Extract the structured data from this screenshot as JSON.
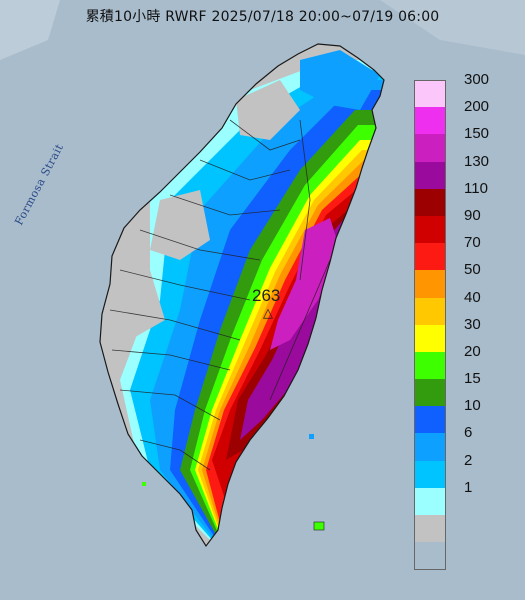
{
  "title": "累積10小時 RWRF 2025/07/18 20:00~07/19 06:00",
  "strait_label": "Formosa Strait",
  "peak_value": "263",
  "peak_marker": "△",
  "legend": [
    {
      "label": "300",
      "color": "#fbc7fb"
    },
    {
      "label": "200",
      "color": "#ee2ff0"
    },
    {
      "label": "150",
      "color": "#cc1fbf"
    },
    {
      "label": "130",
      "color": "#9a0a9c"
    },
    {
      "label": "110",
      "color": "#9c0000"
    },
    {
      "label": "90",
      "color": "#d10000"
    },
    {
      "label": "70",
      "color": "#fd1a12"
    },
    {
      "label": "50",
      "color": "#ff9500"
    },
    {
      "label": "40",
      "color": "#ffc800"
    },
    {
      "label": "30",
      "color": "#ffff00"
    },
    {
      "label": "20",
      "color": "#3dff00"
    },
    {
      "label": "15",
      "color": "#339c0e"
    },
    {
      "label": "10",
      "color": "#0f60ff"
    },
    {
      "label": "6",
      "color": "#0ea0ff"
    },
    {
      "label": "2",
      "color": "#00c4ff"
    },
    {
      "label": "1",
      "color": "#9cffff"
    },
    {
      "label": "",
      "color": "#c2c2c2"
    }
  ]
}
